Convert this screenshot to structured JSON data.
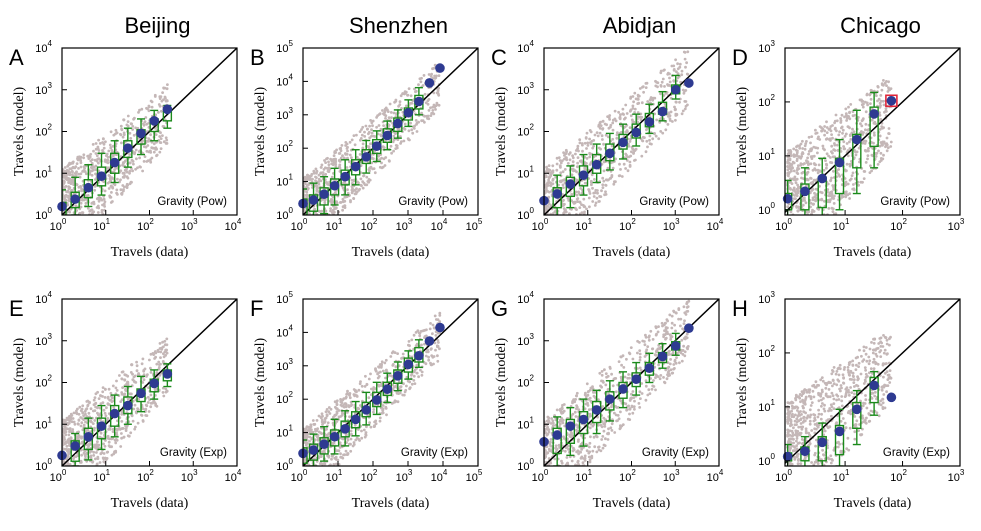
{
  "figure": {
    "colors": {
      "scatter": "#c4b7b7",
      "box": "#1b8a1b",
      "mean": "#2e3a91",
      "diagonal": "#000000",
      "highlight": "#e0263a"
    }
  },
  "chart_data": [
    {
      "id": "A",
      "panel_letter": "A",
      "city": "Beijing",
      "model": "Gravity (Pow)",
      "type": "scatter",
      "xlabel": "Travels (data)",
      "ylabel": "Travels (model)",
      "x_log_range": [
        1,
        10000
      ],
      "y_log_range": [
        1,
        10000
      ],
      "x_ticks": [
        {
          "base": "10",
          "exp": "0"
        },
        {
          "base": "10",
          "exp": "1"
        },
        {
          "base": "10",
          "exp": "2"
        },
        {
          "base": "10",
          "exp": "3"
        },
        {
          "base": "10",
          "exp": "4"
        }
      ],
      "y_ticks": [
        {
          "base": "10",
          "exp": "0"
        },
        {
          "base": "10",
          "exp": "1"
        },
        {
          "base": "10",
          "exp": "2"
        },
        {
          "base": "10",
          "exp": "3"
        },
        {
          "base": "10",
          "exp": "4"
        }
      ],
      "means": [
        [
          1,
          1.6
        ],
        [
          2,
          2.4
        ],
        [
          4,
          4.5
        ],
        [
          8,
          8.5
        ],
        [
          16,
          18
        ],
        [
          32,
          40
        ],
        [
          64,
          90
        ],
        [
          128,
          180
        ],
        [
          256,
          340
        ]
      ],
      "boxes": [
        [
          1,
          0.4,
          1,
          2,
          4
        ],
        [
          2,
          1,
          1.5,
          3.5,
          8
        ],
        [
          4,
          1.6,
          2.6,
          7,
          16
        ],
        [
          8,
          3,
          5,
          14,
          30
        ],
        [
          16,
          6,
          10,
          30,
          60
        ],
        [
          32,
          14,
          24,
          60,
          120
        ],
        [
          64,
          28,
          50,
          110,
          200
        ],
        [
          128,
          60,
          100,
          200,
          320
        ],
        [
          256,
          120,
          180,
          300,
          420
        ]
      ],
      "highlight": null
    },
    {
      "id": "B",
      "panel_letter": "B",
      "city": "Shenzhen",
      "model": "Gravity (Pow)",
      "type": "scatter",
      "xlabel": "Travels (data)",
      "ylabel": "Travels (model)",
      "x_log_range": [
        1,
        100000
      ],
      "y_log_range": [
        1,
        100000
      ],
      "x_ticks": [
        {
          "base": "10",
          "exp": "0"
        },
        {
          "base": "10",
          "exp": "1"
        },
        {
          "base": "10",
          "exp": "2"
        },
        {
          "base": "10",
          "exp": "3"
        },
        {
          "base": "10",
          "exp": "4"
        },
        {
          "base": "10",
          "exp": "5"
        }
      ],
      "y_ticks": [
        {
          "base": "10",
          "exp": "0"
        },
        {
          "base": "10",
          "exp": "1"
        },
        {
          "base": "10",
          "exp": "2"
        },
        {
          "base": "10",
          "exp": "3"
        },
        {
          "base": "10",
          "exp": "4"
        },
        {
          "base": "10",
          "exp": "5"
        }
      ],
      "means": [
        [
          1,
          2.2
        ],
        [
          2,
          2.8
        ],
        [
          4,
          4.2
        ],
        [
          8,
          7.5
        ],
        [
          16,
          14
        ],
        [
          32,
          28
        ],
        [
          64,
          55
        ],
        [
          128,
          115
        ],
        [
          256,
          240
        ],
        [
          512,
          550
        ],
        [
          1024,
          1150
        ],
        [
          2048,
          2500
        ],
        [
          4096,
          9000
        ],
        [
          8192,
          25000
        ]
      ],
      "boxes": [
        [
          1,
          0.6,
          1,
          3,
          6
        ],
        [
          2,
          0.7,
          1.3,
          4,
          9
        ],
        [
          4,
          1.1,
          2,
          6.5,
          14
        ],
        [
          8,
          2,
          4,
          12,
          25
        ],
        [
          16,
          4,
          8,
          22,
          45
        ],
        [
          32,
          8,
          16,
          45,
          90
        ],
        [
          64,
          18,
          35,
          90,
          170
        ],
        [
          128,
          40,
          70,
          180,
          330
        ],
        [
          256,
          90,
          150,
          380,
          650
        ],
        [
          512,
          200,
          320,
          800,
          1400
        ],
        [
          1024,
          450,
          700,
          1600,
          2800
        ],
        [
          2048,
          1000,
          1500,
          3800,
          6500
        ]
      ],
      "highlight": null
    },
    {
      "id": "C",
      "panel_letter": "C",
      "city": "Abidjan",
      "model": "Gravity (Pow)",
      "type": "scatter",
      "xlabel": "Travels (data)",
      "ylabel": "Travels (model)",
      "x_log_range": [
        1,
        10000
      ],
      "y_log_range": [
        1,
        10000
      ],
      "x_ticks": [
        {
          "base": "10",
          "exp": "0"
        },
        {
          "base": "10",
          "exp": "1"
        },
        {
          "base": "10",
          "exp": "2"
        },
        {
          "base": "10",
          "exp": "3"
        },
        {
          "base": "10",
          "exp": "4"
        }
      ],
      "y_ticks": [
        {
          "base": "10",
          "exp": "0"
        },
        {
          "base": "10",
          "exp": "1"
        },
        {
          "base": "10",
          "exp": "2"
        },
        {
          "base": "10",
          "exp": "3"
        },
        {
          "base": "10",
          "exp": "4"
        }
      ],
      "means": [
        [
          1,
          2.2
        ],
        [
          2,
          3.2
        ],
        [
          4,
          5.5
        ],
        [
          8,
          9
        ],
        [
          16,
          16
        ],
        [
          32,
          30
        ],
        [
          64,
          55
        ],
        [
          128,
          95
        ],
        [
          256,
          170
        ],
        [
          512,
          300
        ],
        [
          1024,
          1000
        ],
        [
          2048,
          1450
        ]
      ],
      "boxes": [
        [
          2,
          0.8,
          1.5,
          4.5,
          9
        ],
        [
          4,
          1.5,
          2.8,
          8,
          15
        ],
        [
          8,
          3,
          5,
          15,
          28
        ],
        [
          16,
          6,
          10,
          28,
          50
        ],
        [
          32,
          12,
          20,
          50,
          90
        ],
        [
          64,
          22,
          38,
          85,
          150
        ],
        [
          128,
          45,
          70,
          150,
          260
        ],
        [
          256,
          90,
          130,
          270,
          450
        ],
        [
          512,
          180,
          260,
          500,
          900
        ],
        [
          1024,
          600,
          800,
          1300,
          2200
        ]
      ],
      "highlight": null
    },
    {
      "id": "D",
      "panel_letter": "D",
      "city": "Chicago",
      "model": "Gravity (Pow)",
      "type": "scatter",
      "xlabel": "Travels (data)",
      "ylabel": "Travels (model)",
      "x_log_range": [
        0.9,
        1000
      ],
      "y_log_range": [
        0.8,
        1000
      ],
      "x_ticks": [
        {
          "base": "10",
          "exp": "0"
        },
        {
          "base": "10",
          "exp": "1"
        },
        {
          "base": "10",
          "exp": "2"
        },
        {
          "base": "10",
          "exp": "3"
        }
      ],
      "y_ticks": [
        {
          "base": "10",
          "exp": "0"
        },
        {
          "base": "10",
          "exp": "1"
        },
        {
          "base": "10",
          "exp": "2"
        },
        {
          "base": "10",
          "exp": "3"
        }
      ],
      "means": [
        [
          1,
          1.6
        ],
        [
          2,
          2.2
        ],
        [
          4,
          3.8
        ],
        [
          8,
          7.5
        ],
        [
          16,
          20
        ],
        [
          32,
          60
        ],
        [
          64,
          105
        ]
      ],
      "boxes": [
        [
          1,
          0.5,
          1,
          2,
          3.5
        ],
        [
          2,
          0.7,
          1,
          3,
          6
        ],
        [
          4,
          0.7,
          1.1,
          4,
          9
        ],
        [
          8,
          1,
          2,
          9,
          20
        ],
        [
          16,
          2,
          6,
          25,
          70
        ],
        [
          32,
          6,
          15,
          80,
          150
        ]
      ],
      "highlight": [
        64,
        105
      ]
    },
    {
      "id": "E",
      "panel_letter": "E",
      "city": "Beijing",
      "model": "Gravity (Exp)",
      "type": "scatter",
      "xlabel": "Travels (data)",
      "ylabel": "Travels (model)",
      "x_log_range": [
        1,
        10000
      ],
      "y_log_range": [
        1,
        10000
      ],
      "x_ticks": [
        {
          "base": "10",
          "exp": "0"
        },
        {
          "base": "10",
          "exp": "1"
        },
        {
          "base": "10",
          "exp": "2"
        },
        {
          "base": "10",
          "exp": "3"
        },
        {
          "base": "10",
          "exp": "4"
        }
      ],
      "y_ticks": [
        {
          "base": "10",
          "exp": "0"
        },
        {
          "base": "10",
          "exp": "1"
        },
        {
          "base": "10",
          "exp": "2"
        },
        {
          "base": "10",
          "exp": "3"
        },
        {
          "base": "10",
          "exp": "4"
        }
      ],
      "means": [
        [
          1,
          1.8
        ],
        [
          2,
          3
        ],
        [
          4,
          5
        ],
        [
          8,
          9
        ],
        [
          16,
          18
        ],
        [
          32,
          28
        ],
        [
          64,
          55
        ],
        [
          128,
          95
        ],
        [
          256,
          160
        ]
      ],
      "boxes": [
        [
          2,
          1,
          1.3,
          4,
          6
        ],
        [
          4,
          1.4,
          2.5,
          8,
          14
        ],
        [
          8,
          2.5,
          4.5,
          14,
          28
        ],
        [
          16,
          5,
          9,
          28,
          50
        ],
        [
          32,
          10,
          18,
          45,
          80
        ],
        [
          64,
          20,
          35,
          70,
          140
        ],
        [
          128,
          40,
          60,
          120,
          200
        ],
        [
          256,
          80,
          110,
          200,
          280
        ]
      ],
      "highlight": null
    },
    {
      "id": "F",
      "panel_letter": "F",
      "city": "Shenzhen",
      "model": "Gravity (Exp)",
      "type": "scatter",
      "xlabel": "Travels (data)",
      "ylabel": "Travels (model)",
      "x_log_range": [
        1,
        100000
      ],
      "y_log_range": [
        1,
        100000
      ],
      "x_ticks": [
        {
          "base": "10",
          "exp": "0"
        },
        {
          "base": "10",
          "exp": "1"
        },
        {
          "base": "10",
          "exp": "2"
        },
        {
          "base": "10",
          "exp": "3"
        },
        {
          "base": "10",
          "exp": "4"
        },
        {
          "base": "10",
          "exp": "5"
        }
      ],
      "y_ticks": [
        {
          "base": "10",
          "exp": "0"
        },
        {
          "base": "10",
          "exp": "1"
        },
        {
          "base": "10",
          "exp": "2"
        },
        {
          "base": "10",
          "exp": "3"
        },
        {
          "base": "10",
          "exp": "4"
        },
        {
          "base": "10",
          "exp": "5"
        }
      ],
      "means": [
        [
          1,
          2.4
        ],
        [
          2,
          3
        ],
        [
          4,
          4.5
        ],
        [
          8,
          7.5
        ],
        [
          16,
          13
        ],
        [
          32,
          25
        ],
        [
          64,
          48
        ],
        [
          128,
          95
        ],
        [
          256,
          200
        ],
        [
          512,
          500
        ],
        [
          1024,
          1100
        ],
        [
          2048,
          2000
        ],
        [
          4096,
          5500
        ],
        [
          8192,
          14000
        ]
      ],
      "boxes": [
        [
          1,
          0.8,
          1.2,
          3.5,
          6
        ],
        [
          2,
          1,
          1.5,
          4.5,
          9
        ],
        [
          4,
          1.4,
          2.3,
          7,
          15
        ],
        [
          8,
          2.3,
          4,
          12,
          25
        ],
        [
          16,
          4,
          7.5,
          22,
          45
        ],
        [
          32,
          8,
          14,
          42,
          85
        ],
        [
          64,
          17,
          30,
          80,
          160
        ],
        [
          128,
          35,
          60,
          160,
          320
        ],
        [
          256,
          80,
          130,
          320,
          600
        ],
        [
          512,
          180,
          300,
          750,
          1300
        ],
        [
          1024,
          400,
          650,
          1700,
          2800
        ],
        [
          2048,
          900,
          1300,
          3500,
          6000
        ]
      ],
      "highlight": null
    },
    {
      "id": "G",
      "panel_letter": "G",
      "city": "Abidjan",
      "model": "Gravity (Exp)",
      "type": "scatter",
      "xlabel": "Travels (data)",
      "ylabel": "Travels (model)",
      "x_log_range": [
        1,
        10000
      ],
      "y_log_range": [
        1,
        10000
      ],
      "x_ticks": [
        {
          "base": "10",
          "exp": "0"
        },
        {
          "base": "10",
          "exp": "1"
        },
        {
          "base": "10",
          "exp": "2"
        },
        {
          "base": "10",
          "exp": "3"
        },
        {
          "base": "10",
          "exp": "4"
        }
      ],
      "y_ticks": [
        {
          "base": "10",
          "exp": "0"
        },
        {
          "base": "10",
          "exp": "1"
        },
        {
          "base": "10",
          "exp": "2"
        },
        {
          "base": "10",
          "exp": "3"
        },
        {
          "base": "10",
          "exp": "4"
        }
      ],
      "means": [
        [
          1,
          3.8
        ],
        [
          2,
          5.5
        ],
        [
          4,
          9
        ],
        [
          8,
          13
        ],
        [
          16,
          22
        ],
        [
          32,
          40
        ],
        [
          64,
          70
        ],
        [
          128,
          120
        ],
        [
          256,
          220
        ],
        [
          512,
          420
        ],
        [
          1024,
          750
        ],
        [
          2048,
          2000
        ]
      ],
      "boxes": [
        [
          2,
          1,
          2,
          8,
          15
        ],
        [
          4,
          1.8,
          3.5,
          13,
          25
        ],
        [
          8,
          3,
          6,
          20,
          40
        ],
        [
          16,
          6,
          11,
          35,
          65
        ],
        [
          32,
          12,
          22,
          60,
          110
        ],
        [
          64,
          25,
          42,
          100,
          180
        ],
        [
          128,
          50,
          80,
          170,
          300
        ],
        [
          256,
          100,
          150,
          300,
          500
        ],
        [
          512,
          220,
          300,
          520,
          850
        ],
        [
          1024,
          450,
          600,
          950,
          1500
        ]
      ],
      "highlight": null
    },
    {
      "id": "H",
      "panel_letter": "H",
      "city": "Chicago",
      "model": "Gravity (Exp)",
      "type": "scatter",
      "xlabel": "Travels (data)",
      "ylabel": "Travels (model)",
      "x_log_range": [
        0.9,
        1000
      ],
      "y_log_range": [
        0.8,
        1000
      ],
      "x_ticks": [
        {
          "base": "10",
          "exp": "0"
        },
        {
          "base": "10",
          "exp": "1"
        },
        {
          "base": "10",
          "exp": "2"
        },
        {
          "base": "10",
          "exp": "3"
        }
      ],
      "y_ticks": [
        {
          "base": "10",
          "exp": "0"
        },
        {
          "base": "10",
          "exp": "1"
        },
        {
          "base": "10",
          "exp": "2"
        },
        {
          "base": "10",
          "exp": "3"
        }
      ],
      "means": [
        [
          1,
          1.2
        ],
        [
          2,
          1.5
        ],
        [
          4,
          2.2
        ],
        [
          8,
          3.5
        ],
        [
          16,
          9
        ],
        [
          32,
          25
        ],
        [
          64,
          15
        ]
      ],
      "boxes": [
        [
          1,
          0.7,
          1,
          1.4,
          2
        ],
        [
          2,
          0.7,
          1,
          1.8,
          2.8
        ],
        [
          4,
          0.7,
          1,
          2.8,
          5
        ],
        [
          8,
          0.8,
          1.3,
          4.5,
          9
        ],
        [
          16,
          2,
          4,
          12,
          20
        ],
        [
          32,
          7,
          12,
          35,
          45
        ]
      ],
      "highlight": null
    }
  ]
}
